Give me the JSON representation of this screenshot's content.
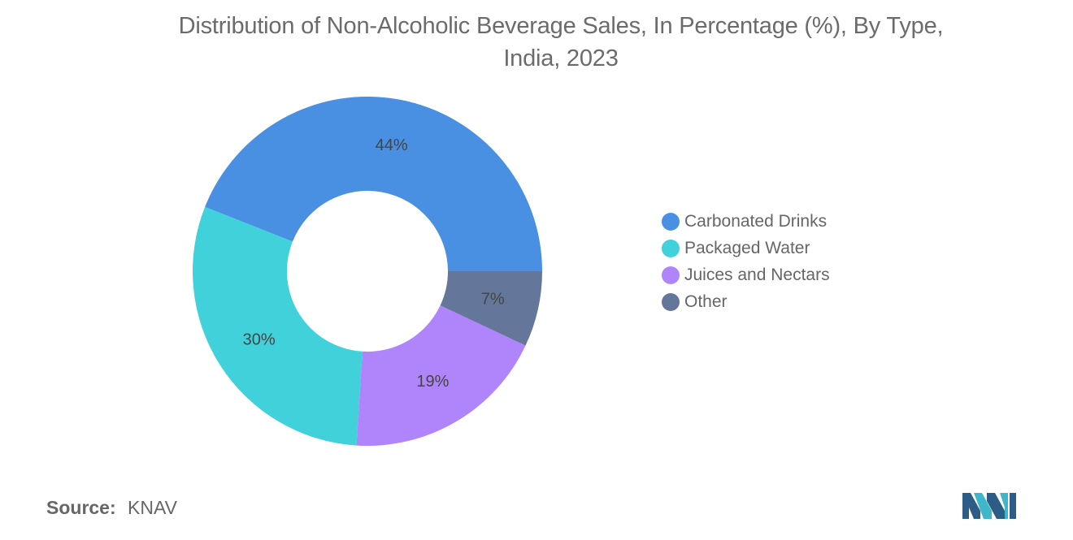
{
  "chart_data": {
    "type": "pie",
    "variant": "donut",
    "title_lines": [
      "Distribution of Non-Alcoholic Beverage Sales, In Percentage (%), By Type,",
      "India, 2023"
    ],
    "categories": [
      "Carbonated Drinks",
      "Packaged Water",
      "Juices and Nectars",
      "Other"
    ],
    "values": [
      44,
      30,
      19,
      7
    ],
    "labels": [
      "44%",
      "30%",
      "19%",
      "7%"
    ],
    "colors": [
      "#4a90e2",
      "#40d1db",
      "#b085fc",
      "#64779a"
    ],
    "legend_position": "right"
  },
  "source": {
    "label": "Source:",
    "value": "KNAV"
  },
  "logo_icon": "mordor-intelligence-logo"
}
